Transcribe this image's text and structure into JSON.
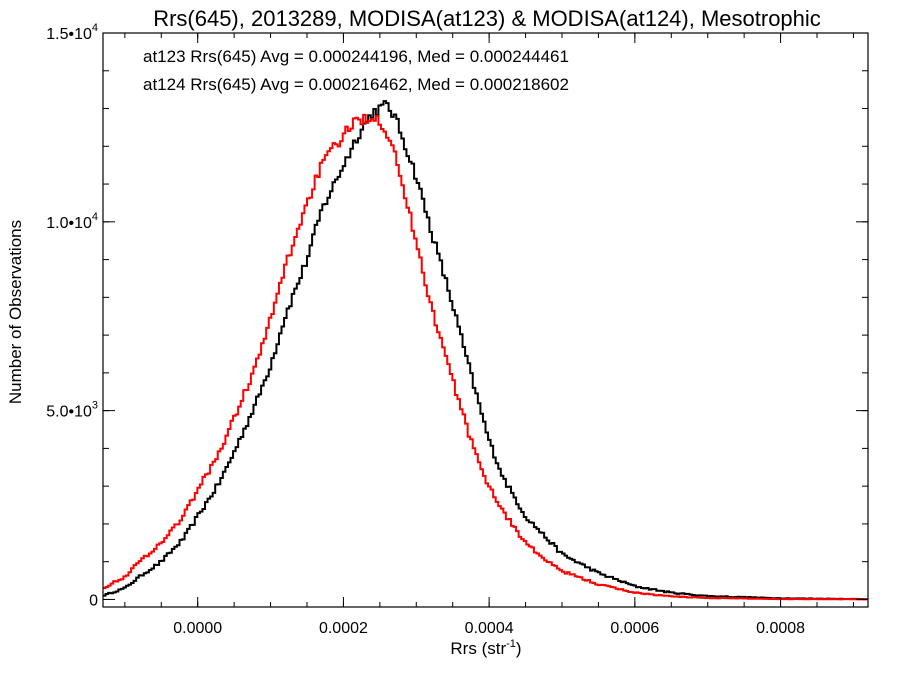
{
  "chart_data": {
    "type": "line",
    "title": "Rrs(645), 2013289, MODISA(at123) & MODISA(at124), Mesotrophic",
    "xlabel": "Rrs (str",
    "xlabel_sup": "-1",
    "xlabel_close": ")",
    "ylabel": "Number of Observations",
    "xlim": [
      -0.00013,
      0.00092
    ],
    "ylim": [
      -200,
      15000
    ],
    "grid": false,
    "legend_placement": "top-left",
    "x_ticks": [
      {
        "value": 0.0,
        "label": "0.0000"
      },
      {
        "value": 0.0002,
        "label": "0.0002"
      },
      {
        "value": 0.0004,
        "label": "0.0004"
      },
      {
        "value": 0.0006,
        "label": "0.0006"
      },
      {
        "value": 0.0008,
        "label": "0.0008"
      }
    ],
    "y_ticks": [
      {
        "value": 0,
        "base": "0",
        "exp": ""
      },
      {
        "value": 5000,
        "base": "5.0•10",
        "exp": "3"
      },
      {
        "value": 10000,
        "base": "1.0•10",
        "exp": "4"
      },
      {
        "value": 15000,
        "base": "1.5•10",
        "exp": "4"
      }
    ],
    "x_minor_step": 5e-05,
    "y_minor_step": 1000,
    "annotations": [
      {
        "text": "at123 Rrs(645) Avg = 0.000244196, Med = 0.000244461",
        "color": "#000000"
      },
      {
        "text": "at124 Rrs(645) Avg = 0.000216462, Med = 0.000218602",
        "color": "#ff0000"
      }
    ],
    "series": [
      {
        "color": "#000000",
        "x": [
          -0.00013,
          -0.0001,
          -8e-05,
          -5e-05,
          -2e-05,
          0.0,
          3e-05,
          5e-05,
          8e-05,
          0.0001,
          0.00012,
          0.00015,
          0.00017,
          0.0002,
          0.00022,
          0.00024,
          0.00026,
          0.00027,
          0.00028,
          0.0003,
          0.00032,
          0.00035,
          0.00038,
          0.0004,
          0.00042,
          0.00045,
          0.00048,
          0.0005,
          0.00055,
          0.0006,
          0.00065,
          0.0007,
          0.0008,
          0.00092
        ],
        "y": [
          100,
          300,
          600,
          1000,
          1600,
          2200,
          3100,
          3900,
          5200,
          6200,
          7500,
          9000,
          10300,
          11500,
          12300,
          12900,
          13100,
          12800,
          12300,
          11200,
          9800,
          7800,
          5600,
          4200,
          3200,
          2200,
          1600,
          1200,
          700,
          350,
          180,
          90,
          30,
          10
        ]
      },
      {
        "color": "#ff0000",
        "x": [
          -0.00013,
          -0.0001,
          -8e-05,
          -5e-05,
          -2e-05,
          0.0,
          3e-05,
          5e-05,
          8e-05,
          0.0001,
          0.00012,
          0.00015,
          0.00017,
          0.0002,
          0.00022,
          0.00024,
          0.00025,
          0.00027,
          0.00028,
          0.0003,
          0.00032,
          0.00035,
          0.00038,
          0.0004,
          0.00042,
          0.00045,
          0.00048,
          0.0005,
          0.00055,
          0.0006,
          0.00065,
          0.0007,
          0.0008,
          0.00092
        ],
        "y": [
          300,
          600,
          1000,
          1500,
          2200,
          2900,
          3900,
          4800,
          6200,
          7400,
          8800,
          10500,
          11500,
          12300,
          12700,
          12800,
          12700,
          12000,
          11000,
          9500,
          7800,
          5800,
          3900,
          3000,
          2300,
          1500,
          1000,
          750,
          400,
          180,
          80,
          40,
          10,
          5
        ]
      }
    ]
  }
}
